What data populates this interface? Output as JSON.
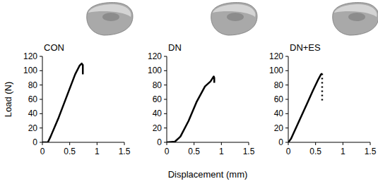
{
  "chart_data": [
    {
      "type": "line",
      "title": "CON",
      "y_label": "Load (N)",
      "xlim": [
        0,
        1.5
      ],
      "xticks": [
        0,
        0.5,
        1,
        1.5
      ],
      "ylim": [
        0,
        120
      ],
      "yticks": [
        0,
        20,
        40,
        60,
        80,
        100,
        120
      ],
      "color": "#000000",
      "series": [
        {
          "x": [
            0,
            0.1,
            0.15,
            0.3,
            0.45,
            0.6,
            0.68,
            0.72,
            0.74,
            0.74
          ],
          "values": [
            0,
            0,
            8,
            35,
            65,
            95,
            107,
            110,
            108,
            95
          ],
          "line_style": "solid"
        }
      ]
    },
    {
      "type": "line",
      "title": "DN",
      "x_label": "Displacement (mm)",
      "xlim": [
        0,
        1.5
      ],
      "xticks": [
        0,
        0.5,
        1,
        1.5
      ],
      "ylim": [
        0,
        120
      ],
      "yticks": [
        0,
        20,
        40,
        60,
        80,
        100,
        120
      ],
      "color": "#000000",
      "series": [
        {
          "x": [
            0,
            0.15,
            0.25,
            0.4,
            0.55,
            0.7,
            0.8,
            0.86,
            0.87,
            0.87
          ],
          "values": [
            0,
            1,
            8,
            30,
            57,
            78,
            85,
            92,
            90,
            83
          ],
          "line_style": "solid"
        }
      ]
    },
    {
      "type": "line",
      "title": "DN+ES",
      "xlim": [
        0,
        1.5
      ],
      "xticks": [
        0,
        0.5,
        1,
        1.5
      ],
      "ylim": [
        0,
        120
      ],
      "yticks": [
        0,
        20,
        40,
        60,
        80,
        100,
        120
      ],
      "color": "#000000",
      "series": [
        {
          "x": [
            0,
            0.05,
            0.2,
            0.35,
            0.45,
            0.55,
            0.6,
            0.62
          ],
          "values": [
            0,
            5,
            30,
            55,
            72,
            88,
            95,
            96
          ],
          "line_style": "solid"
        },
        {
          "x": [
            0.62,
            0.62
          ],
          "values": [
            96,
            55
          ],
          "line_style": "dotted"
        }
      ]
    }
  ]
}
